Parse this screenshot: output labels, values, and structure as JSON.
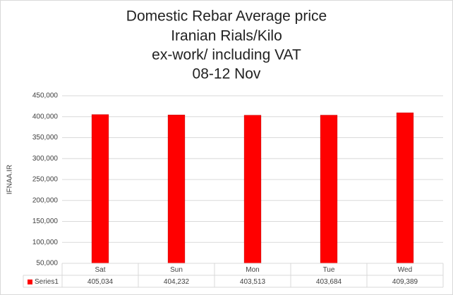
{
  "chart_data": {
    "type": "bar",
    "title": [
      "Domestic Rebar Average price",
      "Iranian Rials/Kilo",
      "ex-work/ including VAT",
      "08-12 Nov"
    ],
    "y_label": "IFNAA.IR",
    "categories": [
      "Sat",
      "Sun",
      "Mon",
      "Tue",
      "Wed"
    ],
    "series": [
      {
        "name": "Series1",
        "color": "#ff0000",
        "values": [
          405034,
          404232,
          403513,
          403684,
          409389
        ],
        "value_labels": [
          "405,034",
          "404,232",
          "403,513",
          "403,684",
          "409,389"
        ]
      }
    ],
    "ylim": [
      50000,
      450000
    ],
    "yticks": [
      {
        "value": 50000,
        "label": "50,000"
      },
      {
        "value": 100000,
        "label": "100,000"
      },
      {
        "value": 150000,
        "label": "150,000"
      },
      {
        "value": 200000,
        "label": "200,000"
      },
      {
        "value": 250000,
        "label": "250,000"
      },
      {
        "value": 300000,
        "label": "300,000"
      },
      {
        "value": 350000,
        "label": "350,000"
      },
      {
        "value": 400000,
        "label": "400,000"
      },
      {
        "value": 450000,
        "label": "450,000"
      }
    ],
    "grid": true,
    "data_table": true
  }
}
